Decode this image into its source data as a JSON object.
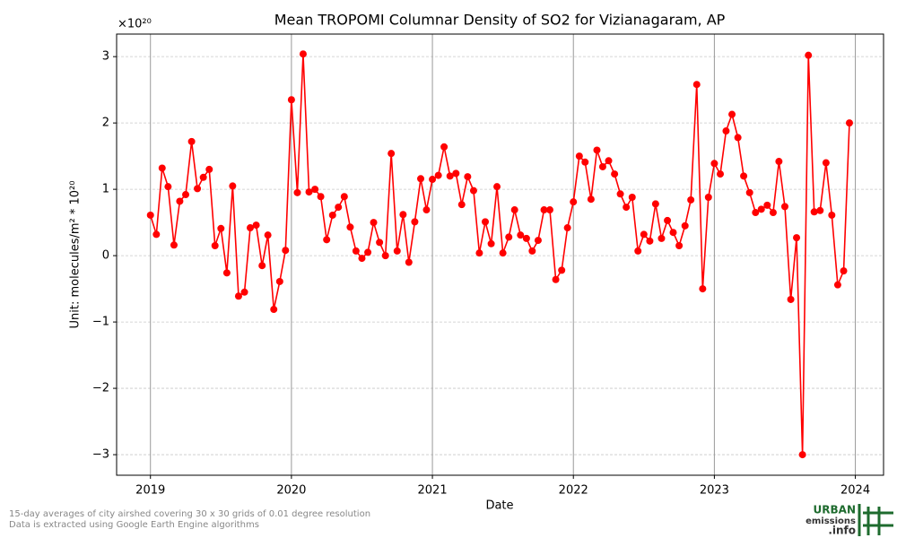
{
  "chart_data": {
    "type": "line",
    "title": "Mean TROPOMI Columnar Density of SO2 for Vizianagaram, AP",
    "x_label": "Date",
    "y_label": "Unit: molecules/m² * 10²⁰",
    "y_offset": "×10²⁰",
    "color": "#ff0000",
    "grid": true,
    "xlim": [
      2018.76,
      2024.2
    ],
    "ylim": [
      -3.31,
      3.34
    ],
    "xticks": [
      2019,
      2020,
      2021,
      2022,
      2023,
      2024
    ],
    "yticks": [
      {
        "value": -3,
        "label": "−3"
      },
      {
        "value": -2,
        "label": "−2"
      },
      {
        "value": -1,
        "label": "−1"
      },
      0,
      1,
      2,
      3
    ],
    "x": [
      2019.0,
      2019.042,
      2019.083,
      2019.125,
      2019.167,
      2019.208,
      2019.25,
      2019.292,
      2019.333,
      2019.375,
      2019.417,
      2019.458,
      2019.5,
      2019.542,
      2019.583,
      2019.625,
      2019.667,
      2019.708,
      2019.75,
      2019.792,
      2019.833,
      2019.875,
      2019.917,
      2019.958,
      2020.0,
      2020.042,
      2020.083,
      2020.125,
      2020.167,
      2020.208,
      2020.25,
      2020.292,
      2020.333,
      2020.375,
      2020.417,
      2020.458,
      2020.5,
      2020.542,
      2020.583,
      2020.625,
      2020.667,
      2020.708,
      2020.75,
      2020.792,
      2020.833,
      2020.875,
      2020.917,
      2020.958,
      2021.0,
      2021.042,
      2021.083,
      2021.125,
      2021.167,
      2021.208,
      2021.25,
      2021.292,
      2021.333,
      2021.375,
      2021.417,
      2021.458,
      2021.5,
      2021.542,
      2021.583,
      2021.625,
      2021.667,
      2021.708,
      2021.75,
      2021.792,
      2021.833,
      2021.875,
      2021.917,
      2021.958,
      2022.0,
      2022.042,
      2022.083,
      2022.125,
      2022.167,
      2022.208,
      2022.25,
      2022.292,
      2022.333,
      2022.375,
      2022.417,
      2022.458,
      2022.5,
      2022.542,
      2022.583,
      2022.625,
      2022.667,
      2022.708,
      2022.75,
      2022.792,
      2022.833,
      2022.875,
      2022.917,
      2022.958,
      2023.0,
      2023.042,
      2023.083,
      2023.125,
      2023.167,
      2023.208,
      2023.25,
      2023.292,
      2023.333,
      2023.375,
      2023.417,
      2023.458,
      2023.5,
      2023.542,
      2023.583,
      2023.625,
      2023.667,
      2023.708,
      2023.75,
      2023.792,
      2023.833,
      2023.875,
      2023.917,
      2023.958
    ],
    "values": [
      0.61,
      0.32,
      1.32,
      1.04,
      0.16,
      0.82,
      0.92,
      1.72,
      1.01,
      1.18,
      1.3,
      0.15,
      0.41,
      -0.26,
      1.05,
      -0.61,
      -0.55,
      0.42,
      0.46,
      -0.15,
      0.31,
      -0.81,
      -0.39,
      0.08,
      2.35,
      0.95,
      3.04,
      0.96,
      1.0,
      0.89,
      0.24,
      0.61,
      0.73,
      0.89,
      0.43,
      0.07,
      -0.04,
      0.05,
      0.5,
      0.2,
      0.0,
      1.54,
      0.07,
      0.62,
      -0.1,
      0.51,
      1.16,
      0.69,
      1.15,
      1.21,
      1.64,
      1.2,
      1.24,
      0.77,
      1.19,
      0.98,
      0.04,
      0.51,
      0.18,
      1.04,
      0.04,
      0.28,
      0.69,
      0.31,
      0.26,
      0.07,
      0.23,
      0.69,
      0.69,
      -0.36,
      -0.22,
      0.42,
      0.81,
      1.5,
      1.41,
      0.85,
      1.59,
      1.34,
      1.43,
      1.23,
      0.93,
      0.73,
      0.88,
      0.07,
      0.32,
      0.22,
      0.78,
      0.26,
      0.53,
      0.35,
      0.15,
      0.45,
      0.84,
      2.58,
      -0.5,
      0.88,
      1.39,
      1.23,
      1.88,
      2.13,
      1.78,
      1.2,
      0.95,
      0.65,
      0.7,
      0.76,
      0.65,
      1.42,
      0.74,
      -0.66,
      0.27,
      -3.0,
      3.02,
      0.66,
      0.68,
      1.4,
      0.61,
      -0.44,
      -0.23,
      2.0
    ]
  },
  "footer": [
    "15-day averages of city airshed covering 30 x 30 grids of 0.01 degree resolution",
    "Data is extracted using Google Earth Engine algorithms"
  ],
  "logo": [
    "URBAN",
    "emissions",
    ".info"
  ]
}
